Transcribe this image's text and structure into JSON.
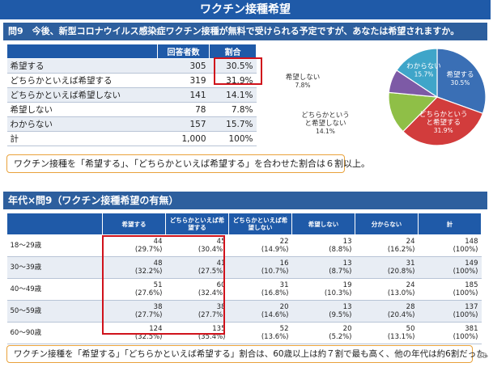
{
  "slide_title": "ワクチン接種希望",
  "question": "問9　今後、新型コロナウイルス感染症ワクチン接種が無料で受けられる予定ですが、あなたは希望されますか。",
  "table1": {
    "headers": [
      "",
      "回答者数",
      "割合"
    ],
    "rows": [
      {
        "label": "希望する",
        "count": "305",
        "pct": "30.5%"
      },
      {
        "label": "どちらかといえば希望する",
        "count": "319",
        "pct": "31.9%"
      },
      {
        "label": "どちらかといえば希望しない",
        "count": "141",
        "pct": "14.1%"
      },
      {
        "label": "希望しない",
        "count": "78",
        "pct": "7.8%"
      },
      {
        "label": "わからない",
        "count": "157",
        "pct": "15.7%"
      },
      {
        "label": "計",
        "count": "1,000",
        "pct": "100%"
      }
    ]
  },
  "chart_data": {
    "type": "pie",
    "slices": [
      {
        "label": "希望する",
        "value": 30.5,
        "pct_label": "30.5%",
        "color": "#3a6fb5"
      },
      {
        "label": "どちらかというと希望する",
        "value": 31.9,
        "pct_label": "31.9%",
        "color": "#d23c3c"
      },
      {
        "label": "どちらかというと希望しない",
        "value": 14.1,
        "pct_label": "14.1%",
        "color": "#8fbf47"
      },
      {
        "label": "希望しない",
        "value": 7.8,
        "pct_label": "7.8%",
        "color": "#7d5aa6"
      },
      {
        "label": "わからない",
        "value": 15.7,
        "pct_label": "15.7%",
        "color": "#3fa5c9"
      }
    ]
  },
  "note1": "ワクチン接種を「希望する」、「どちらかといえば希望する」を合わせた割合は６割以上。",
  "section2_title": "年代×問9（ワクチン接種希望の有無）",
  "table2": {
    "headers": [
      "",
      "希望する",
      "どちらかといえば希望する",
      "どちらかといえば希望しない",
      "希望しない",
      "分からない",
      "計"
    ],
    "rows": [
      {
        "age": "18～29歳",
        "cells": [
          [
            "44",
            "(29.7%)"
          ],
          [
            "45",
            "(30.4%)"
          ],
          [
            "22",
            "(14.9%)"
          ],
          [
            "13",
            "(8.8%)"
          ],
          [
            "24",
            "(16.2%)"
          ],
          [
            "148",
            "(100%)"
          ]
        ]
      },
      {
        "age": "30～39歳",
        "cells": [
          [
            "48",
            "(32.2%)"
          ],
          [
            "41",
            "(27.5%)"
          ],
          [
            "16",
            "(10.7%)"
          ],
          [
            "13",
            "(8.7%)"
          ],
          [
            "31",
            "(20.8%)"
          ],
          [
            "149",
            "(100%)"
          ]
        ]
      },
      {
        "age": "40～49歳",
        "cells": [
          [
            "51",
            "(27.6%)"
          ],
          [
            "60",
            "(32.4%)"
          ],
          [
            "31",
            "(16.8%)"
          ],
          [
            "19",
            "(10.3%)"
          ],
          [
            "24",
            "(13.0%)"
          ],
          [
            "185",
            "(100%)"
          ]
        ]
      },
      {
        "age": "50～59歳",
        "cells": [
          [
            "38",
            "(27.7%)"
          ],
          [
            "38",
            "(27.7%)"
          ],
          [
            "20",
            "(14.6%)"
          ],
          [
            "13",
            "(9.5%)"
          ],
          [
            "28",
            "(20.4%)"
          ],
          [
            "137",
            "(100%)"
          ]
        ]
      },
      {
        "age": "60～90歳",
        "cells": [
          [
            "124",
            "(32.5%)"
          ],
          [
            "135",
            "(35.4%)"
          ],
          [
            "52",
            "(13.6%)"
          ],
          [
            "20",
            "(5.2%)"
          ],
          [
            "50",
            "(13.1%)"
          ],
          [
            "381",
            "(100%)"
          ]
        ]
      }
    ]
  },
  "note2": "ワクチン接種を「希望する」「どちらかといえば希望する」割合は、60歳以上は約７割で最も高く、他の年代は約6割だった。",
  "page_number": "28"
}
